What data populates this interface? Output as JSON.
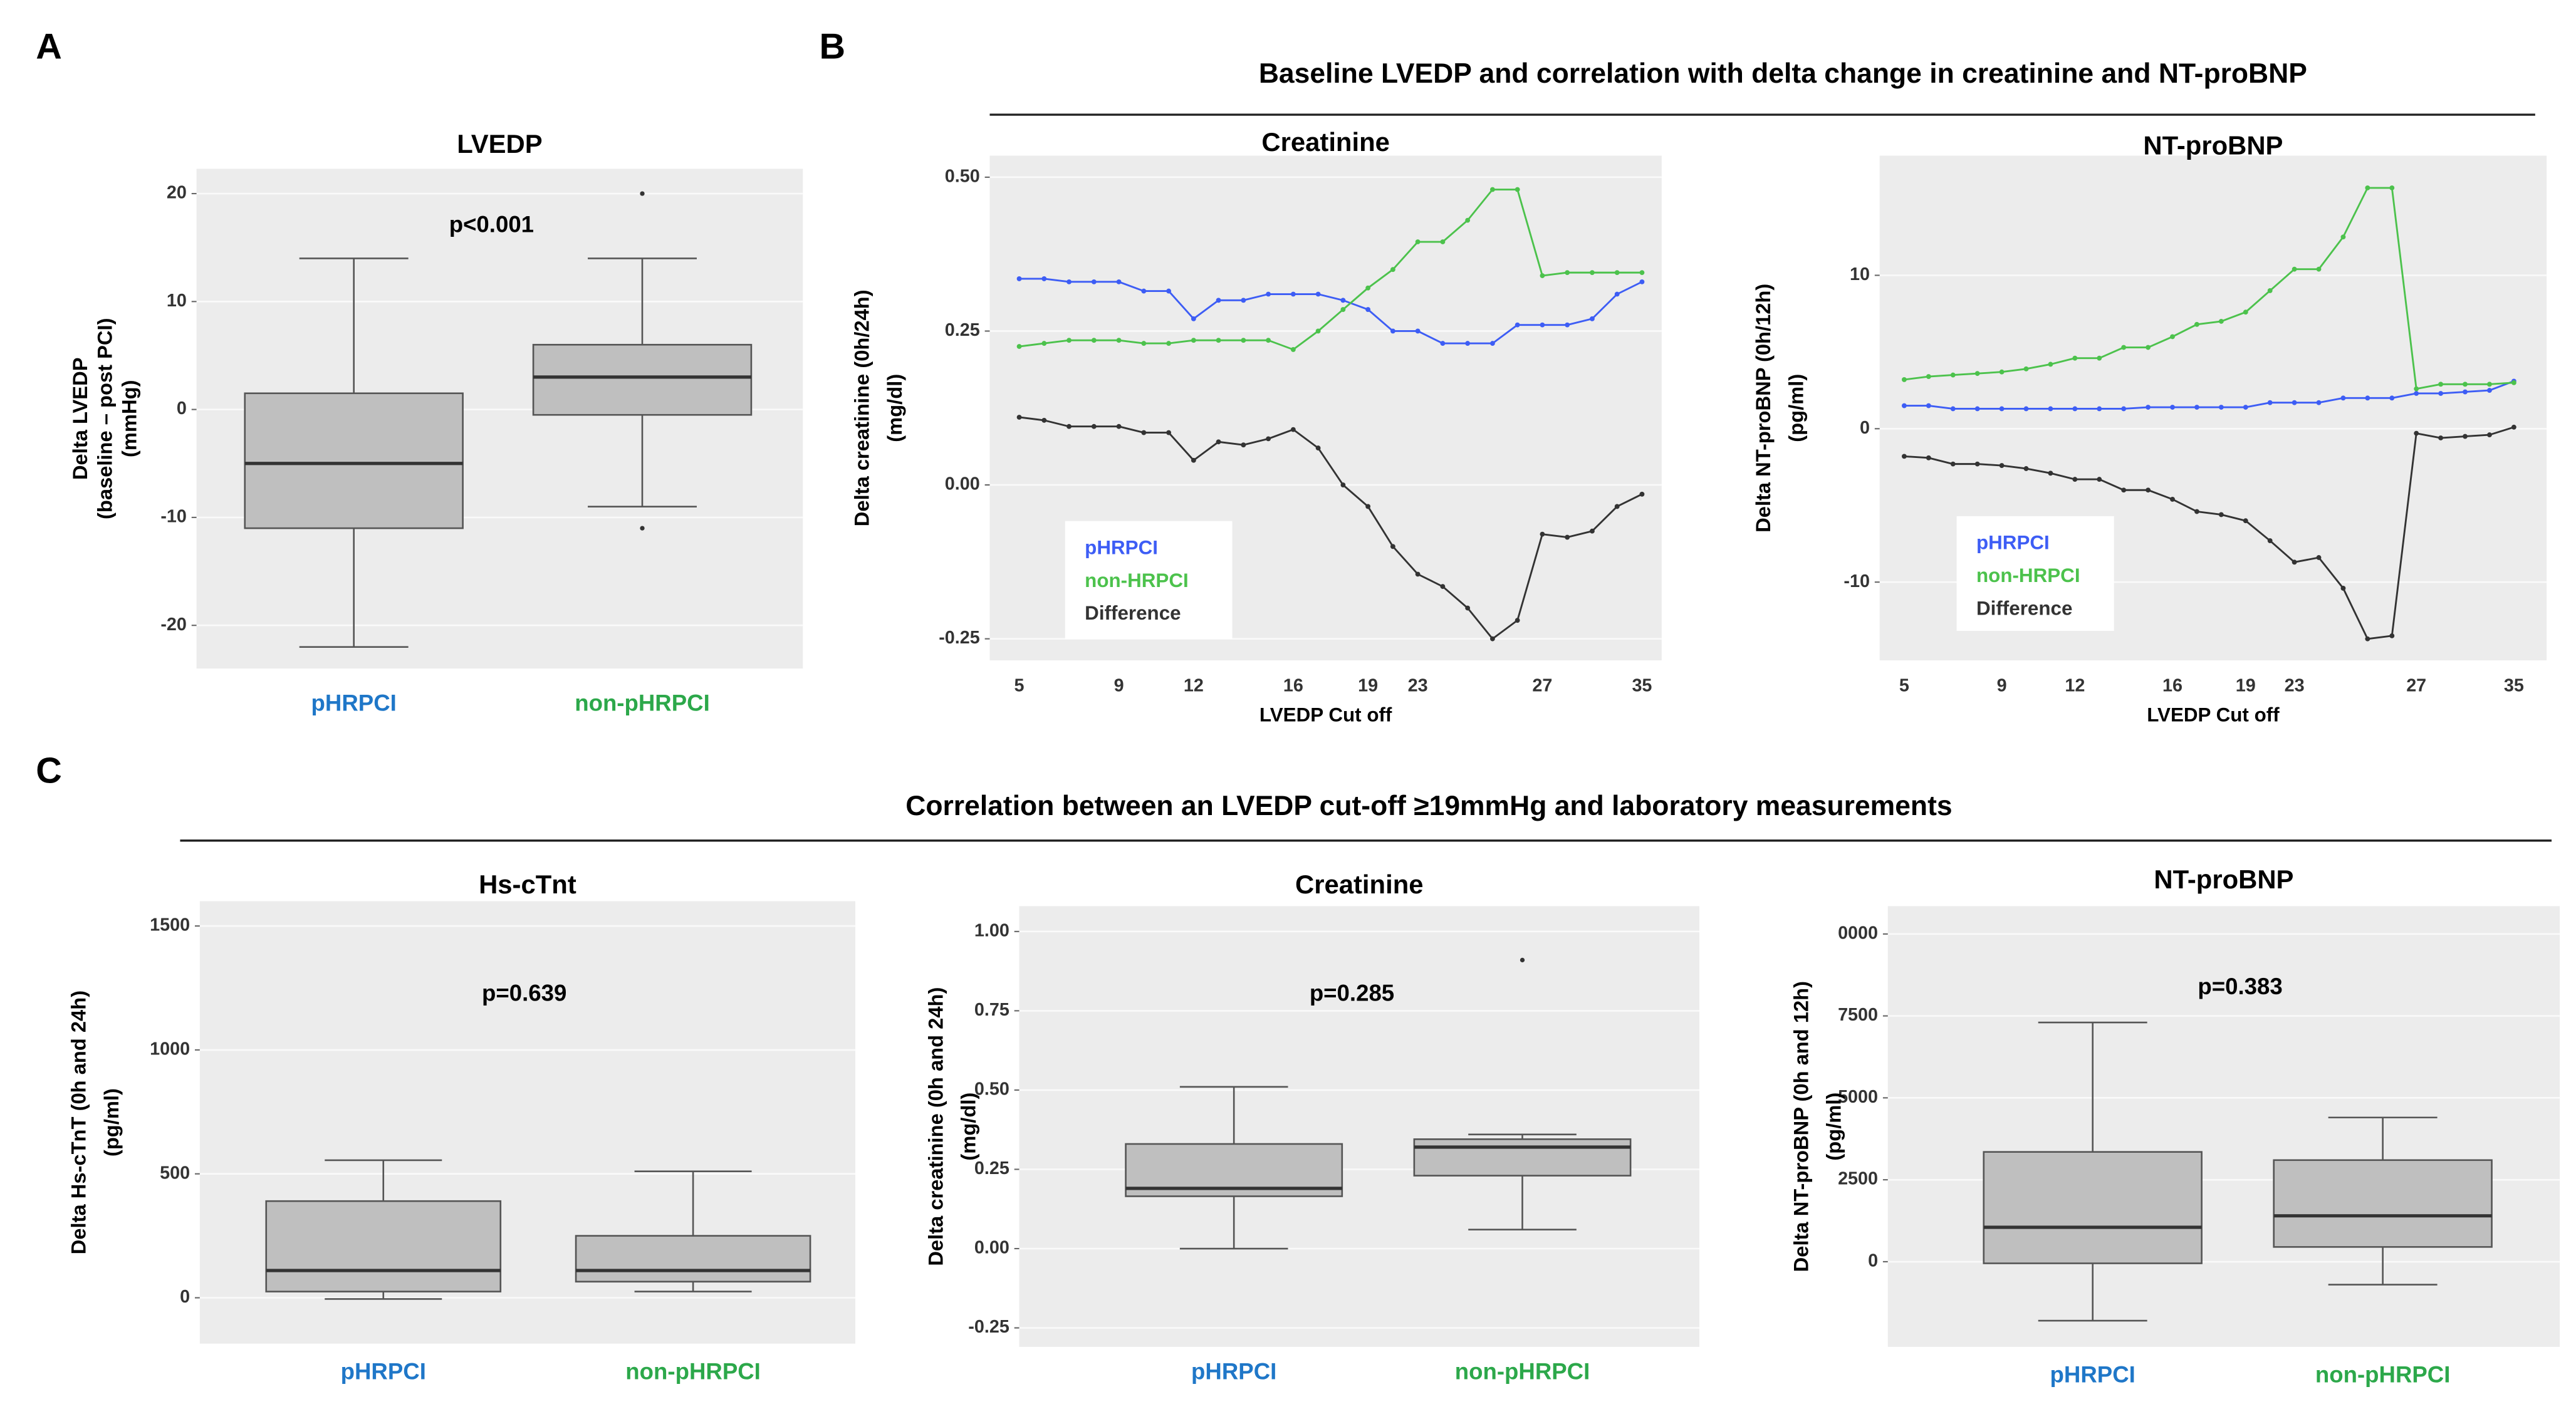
{
  "panels": [
    "A",
    "B",
    "C"
  ],
  "headers": [
    "Baseline LVEDP and correlation with delta change in creatinine and NT-proBNP",
    "Correlation between an  LVEDP cut-off  ≥19mmHg and laboratory measurements"
  ],
  "chart_data": [
    {
      "type": "box",
      "title": "LVEDP",
      "annotation": "p<0.001",
      "ylabel": [
        "Delta LVEDP",
        "(baseline – post PCI)",
        "(mmHg)"
      ],
      "categories": [
        "pHRPCI",
        "non-pHRPCI"
      ],
      "category_colors": [
        "#1f77c8",
        "#2ca84a"
      ],
      "color": "#bfbfbf",
      "ylim": [
        -24,
        22.3
      ],
      "yticks": [
        20,
        10,
        0,
        -10,
        -20
      ],
      "boxes": [
        {
          "whisker_low": -22,
          "q1": -11,
          "median": -5,
          "q3": 1.5,
          "whisker_high": 14,
          "outliers": []
        },
        {
          "whisker_low": -9,
          "q1": -0.5,
          "median": 3,
          "q3": 6,
          "whisker_high": 14,
          "outliers": [
            20,
            -11
          ]
        }
      ]
    },
    {
      "type": "line",
      "title": "Creatinine",
      "ylabel": [
        "Delta creatinine (0h/24h)",
        "(mg/dl)"
      ],
      "xlabel": "LVEDP Cut off",
      "categories": [
        "5",
        null,
        null,
        null,
        "9",
        null,
        null,
        "12",
        null,
        null,
        null,
        "16",
        null,
        null,
        "19",
        null,
        "23",
        null,
        null,
        null,
        null,
        "27",
        null,
        null,
        null,
        "35"
      ],
      "ylim": [
        -0.285,
        0.535
      ],
      "yticks": [
        {
          "value": 0.5,
          "label": "0.50"
        },
        0.25,
        {
          "value": 0,
          "label": "0.00"
        },
        -0.25
      ],
      "legend": "lower left",
      "series": [
        {
          "name": "pHRPCI",
          "color": "#3d5df5",
          "values": [
            0.335,
            0.335,
            0.33,
            0.33,
            0.33,
            0.315,
            0.315,
            0.27,
            0.3,
            0.3,
            0.31,
            0.31,
            0.31,
            0.3,
            0.285,
            0.25,
            0.25,
            0.23,
            0.23,
            0.23,
            0.26,
            0.26,
            0.26,
            0.27,
            0.31,
            0.33
          ]
        },
        {
          "name": "non-HRPCI",
          "color": "#4cc24c",
          "values": [
            0.225,
            0.23,
            0.235,
            0.235,
            0.235,
            0.23,
            0.23,
            0.235,
            0.235,
            0.235,
            0.235,
            0.22,
            0.25,
            0.285,
            0.32,
            0.35,
            0.395,
            0.395,
            0.43,
            0.48,
            0.48,
            0.34,
            0.345,
            0.345,
            0.345,
            0.345
          ]
        },
        {
          "name": "Difference",
          "color": "#333333",
          "values": [
            0.11,
            0.105,
            0.095,
            0.095,
            0.095,
            0.085,
            0.085,
            0.04,
            0.07,
            0.065,
            0.075,
            0.09,
            0.06,
            0.0,
            -0.035,
            -0.1,
            -0.145,
            -0.165,
            -0.2,
            -0.25,
            -0.22,
            -0.08,
            -0.085,
            -0.075,
            -0.035,
            -0.015
          ]
        }
      ]
    },
    {
      "type": "line",
      "title": "NT-proBNP",
      "ylabel": [
        "Delta NT-proBNP (0h/12h)",
        "(pg/ml)"
      ],
      "xlabel": "LVEDP Cut off",
      "categories": [
        "5",
        null,
        null,
        null,
        "9",
        null,
        null,
        "12",
        null,
        null,
        null,
        "16",
        null,
        null,
        "19",
        null,
        "23",
        null,
        null,
        null,
        null,
        "27",
        null,
        null,
        null,
        "35"
      ],
      "ylim": [
        -15.1,
        17.8
      ],
      "yticks": [
        10,
        0,
        -10
      ],
      "legend": "lower left",
      "series": [
        {
          "name": "pHRPCI",
          "color": "#3d5df5",
          "values": [
            1.5,
            1.5,
            1.3,
            1.3,
            1.3,
            1.3,
            1.3,
            1.3,
            1.3,
            1.3,
            1.4,
            1.4,
            1.4,
            1.4,
            1.4,
            1.7,
            1.7,
            1.7,
            2.0,
            2.0,
            2.0,
            2.3,
            2.3,
            2.4,
            2.5,
            3.1
          ]
        },
        {
          "name": "non-HRPCI",
          "color": "#4cc24c",
          "values": [
            3.2,
            3.4,
            3.5,
            3.6,
            3.7,
            3.9,
            4.2,
            4.6,
            4.6,
            5.3,
            5.3,
            6.0,
            6.8,
            7.0,
            7.6,
            9.0,
            10.4,
            10.4,
            12.5,
            15.7,
            15.7,
            2.6,
            2.9,
            2.9,
            2.9,
            3.0
          ]
        },
        {
          "name": "Difference",
          "color": "#333333",
          "values": [
            -1.8,
            -1.9,
            -2.3,
            -2.3,
            -2.4,
            -2.6,
            -2.9,
            -3.3,
            -3.3,
            -4.0,
            -4.0,
            -4.6,
            -5.4,
            -5.6,
            -6.0,
            -7.3,
            -8.7,
            -8.4,
            -10.4,
            -13.7,
            -13.5,
            -0.3,
            -0.6,
            -0.5,
            -0.4,
            0.1
          ]
        }
      ]
    },
    {
      "type": "box",
      "title": "Hs-cTnt",
      "annotation": "p=0.639",
      "ylabel": [
        "Delta Hs-cTnT (0h and 24h)",
        "(pg/ml)"
      ],
      "categories": [
        "pHRPCI",
        "non-pHRPCI"
      ],
      "category_colors": [
        "#1f77c8",
        "#2ca84a"
      ],
      "color": "#bfbfbf",
      "ylim": [
        -185,
        1600
      ],
      "yticks": [
        1500,
        1000,
        500,
        0
      ],
      "boxes": [
        {
          "whisker_low": -5,
          "q1": 25,
          "median": 110,
          "q3": 390,
          "whisker_high": 555,
          "outliers": []
        },
        {
          "whisker_low": 25,
          "q1": 65,
          "median": 110,
          "q3": 250,
          "whisker_high": 510,
          "outliers": []
        }
      ]
    },
    {
      "type": "box",
      "title": "Creatinine",
      "annotation": "p=0.285",
      "ylabel": [
        "Delta creatinine (0h and 24h)",
        "(mg/dl)"
      ],
      "categories": [
        "pHRPCI",
        "non-pHRPCI"
      ],
      "category_colors": [
        "#1f77c8",
        "#2ca84a"
      ],
      "color": "#bfbfbf",
      "ylim": [
        -0.31,
        1.08
      ],
      "yticks": [
        {
          "value": 1,
          "label": "1.00"
        },
        0.75,
        {
          "value": 0.5,
          "label": "0.50"
        },
        0.25,
        {
          "value": 0,
          "label": "0.00"
        },
        -0.25
      ],
      "boxes": [
        {
          "whisker_low": 0.0,
          "q1": 0.165,
          "median": 0.19,
          "q3": 0.33,
          "whisker_high": 0.51,
          "outliers": []
        },
        {
          "whisker_low": 0.06,
          "q1": 0.23,
          "median": 0.32,
          "q3": 0.345,
          "whisker_high": 0.36,
          "outliers": [
            0.91
          ]
        }
      ]
    },
    {
      "type": "box",
      "title": "NT-proBNP",
      "annotation": "p=0.383",
      "ylabel": [
        "Delta NT-proBNP (0h and 12h)",
        "(pg/ml)"
      ],
      "categories": [
        "pHRPCI",
        "non-pHRPCI"
      ],
      "category_colors": [
        "#1f77c8",
        "#2ca84a"
      ],
      "color": "#bfbfbf",
      "ylim": [
        -2600,
        10850
      ],
      "yticks": [
        {
          "value": 10000,
          "label": "0000"
        },
        7500,
        5000,
        2500,
        0
      ],
      "boxes": [
        {
          "whisker_low": -1800,
          "q1": -50,
          "median": 1050,
          "q3": 3350,
          "whisker_high": 7300,
          "outliers": []
        },
        {
          "whisker_low": -700,
          "q1": 450,
          "median": 1400,
          "q3": 3100,
          "whisker_high": 4400,
          "outliers": []
        }
      ]
    }
  ]
}
